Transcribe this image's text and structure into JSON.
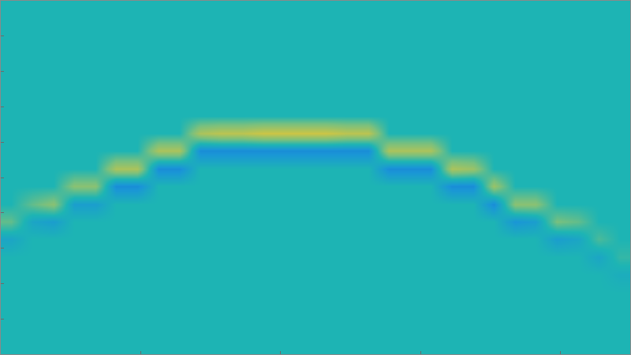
{
  "chart_data": {
    "type": "heatmap",
    "x": [
      7.5,
      22.5,
      37.5,
      52.5,
      67.5,
      82.5,
      97.5,
      112.5,
      127.5,
      142.5,
      157.5,
      172.5,
      187.5,
      202.5,
      217.5,
      232.5,
      247.5,
      262.5,
      277.5,
      292.5,
      307.5,
      322.5,
      337.5,
      352.5,
      367.5,
      382.5,
      397.5,
      412.5,
      427.5,
      442.5
    ],
    "y": [
      0.25,
      0.75,
      1.25,
      1.75,
      2.25,
      2.75,
      3.25,
      3.75,
      4.25,
      4.75,
      5.25,
      5.75,
      6.25,
      6.75,
      7.25,
      7.75,
      8.25,
      8.75,
      9.25,
      9.75
    ],
    "z": [
      [
        0,
        0,
        0,
        0,
        0,
        0,
        0,
        0,
        0,
        0,
        0,
        0,
        0,
        0,
        0,
        0,
        0,
        0,
        0,
        0,
        0,
        0,
        0,
        0,
        0,
        0,
        0,
        0,
        0,
        0
      ],
      [
        0,
        0,
        0,
        0,
        0,
        0,
        0,
        0,
        0,
        0,
        0,
        0,
        0,
        0,
        0,
        0,
        0,
        0,
        0,
        0,
        0,
        0,
        0,
        0,
        0,
        0,
        0,
        0,
        0,
        0
      ],
      [
        0,
        0,
        0,
        0,
        0,
        0,
        0,
        0,
        0,
        0,
        0,
        0,
        0,
        0,
        0,
        0,
        0,
        0,
        0,
        0,
        0,
        0,
        0,
        0,
        0,
        0,
        0,
        0,
        0,
        0
      ],
      [
        0,
        0,
        0,
        0,
        0,
        0,
        0,
        0,
        0,
        0,
        0,
        0,
        0,
        0,
        0,
        0,
        0,
        0,
        0,
        0,
        0,
        0,
        0,
        0,
        0,
        0,
        0,
        0,
        0,
        0
      ],
      [
        0,
        0,
        0,
        0,
        0,
        0,
        0,
        0,
        0,
        0,
        0,
        0,
        0,
        0,
        0,
        0,
        0,
        0,
        0,
        0,
        0,
        0,
        0,
        0,
        0,
        0,
        0,
        0,
        0,
        0
      ],
      [
        0,
        0,
        0,
        0,
        0,
        0,
        0,
        0,
        0,
        0,
        0,
        0,
        0,
        0,
        0,
        0,
        0,
        0,
        0,
        0,
        0,
        0,
        0,
        0,
        0,
        0,
        0,
        0,
        0,
        0
      ],
      [
        0,
        0,
        0,
        0,
        0,
        0,
        0,
        0,
        0,
        0,
        0,
        0,
        0,
        0,
        0,
        0,
        0,
        0,
        0,
        0,
        0,
        0,
        0,
        0,
        0,
        0,
        0,
        0,
        0,
        0
      ],
      [
        0,
        0,
        0,
        0,
        0,
        0,
        0,
        0,
        0,
        0.7,
        0.8,
        0.8,
        0.9,
        0.9,
        0.9,
        0.9,
        0.8,
        0.8,
        0,
        0,
        0,
        0,
        0,
        0,
        0,
        0,
        0,
        0,
        0,
        0
      ],
      [
        0,
        0,
        0,
        0,
        0,
        0,
        0,
        0.7,
        0.7,
        -0.5,
        -0.5,
        -0.5,
        -0.5,
        -0.5,
        -0.5,
        -0.5,
        -0.5,
        -0.5,
        0.7,
        0.7,
        0.7,
        0,
        0,
        0,
        0,
        0,
        0,
        0,
        0,
        0
      ],
      [
        0,
        0,
        0,
        0,
        0,
        0.7,
        0.7,
        -0.5,
        -0.5,
        0,
        0,
        0,
        0,
        0,
        0,
        0,
        0,
        0,
        -0.5,
        -0.5,
        -0.5,
        0.7,
        0.6,
        0,
        0,
        0,
        0,
        0,
        0,
        0
      ],
      [
        0,
        0,
        0,
        0.5,
        0.5,
        -0.5,
        -0.5,
        0,
        0,
        0,
        0,
        0,
        0,
        0,
        0,
        0,
        0,
        0,
        0,
        0,
        0,
        -0.5,
        -0.5,
        0.6,
        0,
        0,
        0,
        0,
        0,
        0
      ],
      [
        0,
        0.3,
        0.5,
        -0.3,
        -0.3,
        0,
        0,
        0,
        0,
        0,
        0,
        0,
        0,
        0,
        0,
        0,
        0,
        0,
        0,
        0,
        0,
        0,
        0,
        -0.5,
        0.5,
        0.5,
        0,
        0,
        0,
        0
      ],
      [
        0.3,
        -0.2,
        -0.3,
        0,
        0,
        0,
        0,
        0,
        0,
        0,
        0,
        0,
        0,
        0,
        0,
        0,
        0,
        0,
        0,
        0,
        0,
        0,
        0,
        0,
        -0.4,
        -0.3,
        0.4,
        0.3,
        0,
        0
      ],
      [
        -0.2,
        0,
        0,
        0,
        0,
        0,
        0,
        0,
        0,
        0,
        0,
        0,
        0,
        0,
        0,
        0,
        0,
        0,
        0,
        0,
        0,
        0,
        0,
        0,
        0,
        0,
        -0.3,
        -0.2,
        0.2,
        0
      ],
      [
        0,
        0,
        0,
        0,
        0,
        0,
        0,
        0,
        0,
        0,
        0,
        0,
        0,
        0,
        0,
        0,
        0,
        0,
        0,
        0,
        0,
        0,
        0,
        0,
        0,
        0,
        0,
        0,
        -0.2,
        0.1
      ],
      [
        0,
        0,
        0,
        0,
        0,
        0,
        0,
        0,
        0,
        0,
        0,
        0,
        0,
        0,
        0,
        0,
        0,
        0,
        0,
        0,
        0,
        0,
        0,
        0,
        0,
        0,
        0,
        0,
        0,
        -0.1
      ],
      [
        0,
        0,
        0,
        0,
        0,
        0,
        0,
        0,
        0,
        0,
        0,
        0,
        0,
        0,
        0,
        0,
        0,
        0,
        0,
        0,
        0,
        0,
        0,
        0,
        0,
        0,
        0,
        0,
        0,
        0
      ],
      [
        0,
        0,
        0,
        0,
        0,
        0,
        0,
        0,
        0,
        0,
        0,
        0,
        0,
        0,
        0,
        0,
        0,
        0,
        0,
        0,
        0,
        0,
        0,
        0,
        0,
        0,
        0,
        0,
        0,
        0
      ],
      [
        0,
        0,
        0,
        0,
        0,
        0,
        0,
        0,
        0,
        0,
        0,
        0,
        0,
        0,
        0,
        0,
        0,
        0,
        0,
        0,
        0,
        0,
        0,
        0,
        0,
        0,
        0,
        0,
        0,
        0
      ],
      [
        0,
        0,
        0,
        0,
        0,
        0,
        0,
        0,
        0,
        0,
        0,
        0,
        0,
        0,
        0,
        0,
        0,
        0,
        0,
        0,
        0,
        0,
        0,
        0,
        0,
        0,
        0,
        0,
        0,
        0
      ]
    ],
    "zlim": [
      -1,
      1
    ],
    "xlim": [
      0,
      450
    ],
    "ylim": [
      10,
      0
    ],
    "xticks": [
      100,
      200,
      300,
      400
    ],
    "yticks": [
      0,
      1,
      2,
      3,
      4,
      5,
      6,
      7,
      8,
      9,
      10
    ],
    "tick_labels": false
  }
}
